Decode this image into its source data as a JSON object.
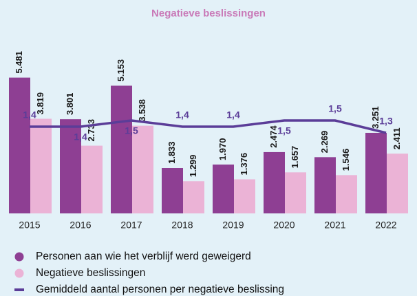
{
  "chart_data": {
    "type": "bar",
    "title": "Negatieve beslissingen",
    "categories": [
      "2015",
      "2016",
      "2017",
      "2018",
      "2019",
      "2020",
      "2021",
      "2022"
    ],
    "series": [
      {
        "name": "Personen aan wie het verblijf werd geweigerd",
        "color": "#8e3f93",
        "values": [
          5481,
          3801,
          5153,
          1833,
          1970,
          2474,
          2269,
          3251
        ],
        "value_labels": [
          "5.481",
          "3.801",
          "5.153",
          "1.833",
          "1.970",
          "2.474",
          "2.269",
          "3.251"
        ]
      },
      {
        "name": "Negatieve beslissingen",
        "color": "#ebb3d6",
        "values": [
          3819,
          2733,
          3538,
          1299,
          1376,
          1657,
          1546,
          2411
        ],
        "value_labels": [
          "3.819",
          "2.733",
          "3.538",
          "1.299",
          "1.376",
          "1.657",
          "1.546",
          "2.411"
        ]
      },
      {
        "name": "Gemiddeld aantal personen per negatieve beslissing",
        "color": "#5b3d98",
        "type": "line",
        "axis": "y2",
        "values": [
          1.4,
          1.4,
          1.5,
          1.4,
          1.4,
          1.5,
          1.5,
          1.3
        ],
        "value_labels": [
          "1,4",
          "1,4",
          "1,5",
          "1,4",
          "1,4",
          "1,5",
          "1,5",
          "1,3"
        ]
      }
    ],
    "ylim": [
      0,
      7500
    ],
    "y2lim": [
      0,
      3
    ],
    "grid": false,
    "legend": "bottom-left"
  }
}
